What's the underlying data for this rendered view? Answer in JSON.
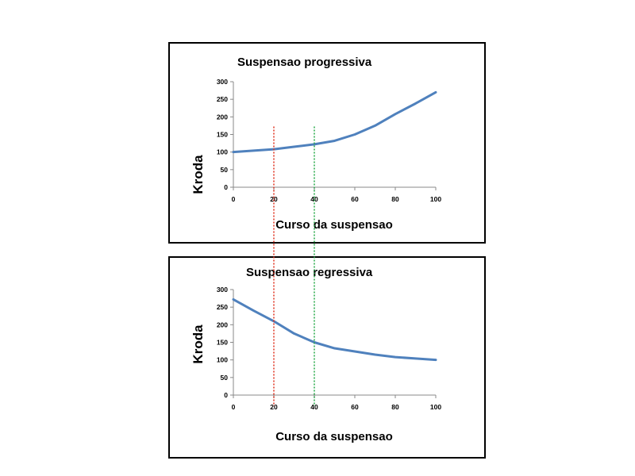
{
  "chart_data": [
    {
      "type": "line",
      "title": "Suspensao progressiva",
      "xlabel": "Curso da suspensao",
      "ylabel": "Kroda",
      "xlim": [
        0,
        100
      ],
      "ylim": [
        0,
        300
      ],
      "x_ticks": [
        0,
        20,
        40,
        60,
        80,
        100
      ],
      "y_ticks": [
        0,
        50,
        100,
        150,
        200,
        250,
        300
      ],
      "grid": false,
      "legend": "none",
      "series": [
        {
          "color": "#4f81bd",
          "x": [
            0,
            10,
            20,
            30,
            40,
            50,
            60,
            70,
            80,
            90,
            100
          ],
          "y": [
            100,
            104,
            108,
            115,
            122,
            132,
            150,
            175,
            208,
            238,
            270
          ]
        }
      ]
    },
    {
      "type": "line",
      "title": "Suspensao regressiva",
      "xlabel": "Curso da suspensao",
      "ylabel": "Kroda",
      "xlim": [
        0,
        100
      ],
      "ylim": [
        0,
        300
      ],
      "x_ticks": [
        0,
        20,
        40,
        60,
        80,
        100
      ],
      "y_ticks": [
        0,
        50,
        100,
        150,
        200,
        250,
        300
      ],
      "grid": false,
      "legend": "none",
      "series": [
        {
          "color": "#4f81bd",
          "x": [
            0,
            10,
            20,
            30,
            40,
            50,
            60,
            70,
            80,
            90,
            100
          ],
          "y": [
            272,
            240,
            210,
            175,
            150,
            133,
            124,
            115,
            108,
            104,
            100
          ]
        }
      ]
    }
  ],
  "markers": [
    {
      "x": 20,
      "color": "#e0301e"
    },
    {
      "x": 40,
      "color": "#22a845"
    }
  ]
}
